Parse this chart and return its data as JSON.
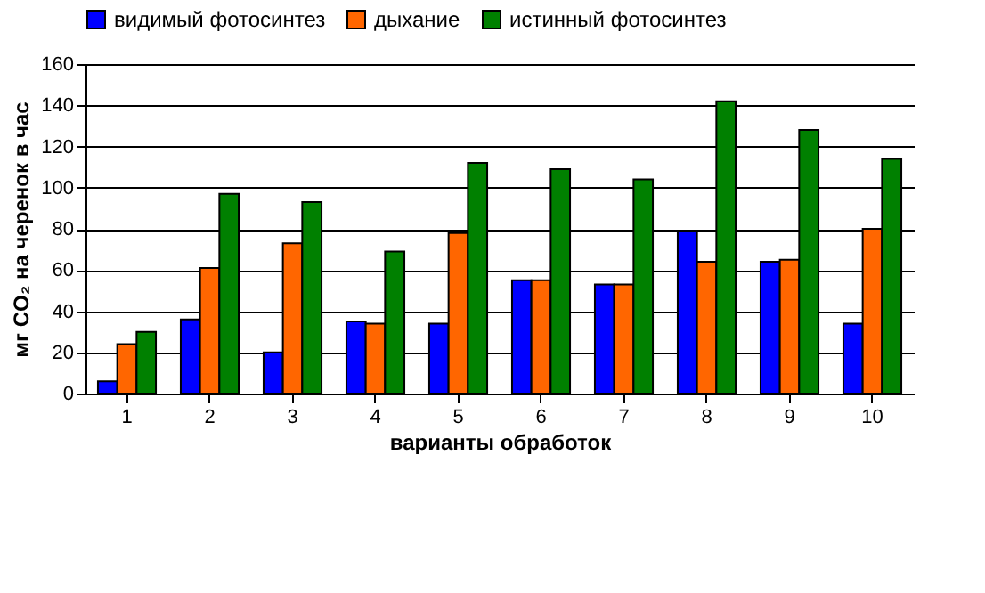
{
  "chart_data": {
    "type": "bar",
    "xlabel": "варианты обработок",
    "ylabel": "мг CO₂ на черенок в час",
    "categories": [
      "1",
      "2",
      "3",
      "4",
      "5",
      "6",
      "7",
      "8",
      "9",
      "10"
    ],
    "series": [
      {
        "name": "видимый фотосинтез",
        "color": "#0000ff",
        "values": [
          6,
          36,
          20,
          35,
          34,
          55,
          53,
          79,
          64,
          34
        ]
      },
      {
        "name": "дыхание",
        "color": "#ff6600",
        "values": [
          24,
          61,
          73,
          34,
          78,
          55,
          53,
          64,
          65,
          80
        ]
      },
      {
        "name": "истинный фотосинтез",
        "color": "#008000",
        "values": [
          30,
          97,
          93,
          69,
          112,
          109,
          104,
          142,
          128,
          114
        ]
      }
    ],
    "ylim": [
      0,
      160
    ],
    "yticks": [
      0,
      20,
      40,
      60,
      80,
      100,
      120,
      140,
      160
    ],
    "grid": "y",
    "legend": "top"
  }
}
